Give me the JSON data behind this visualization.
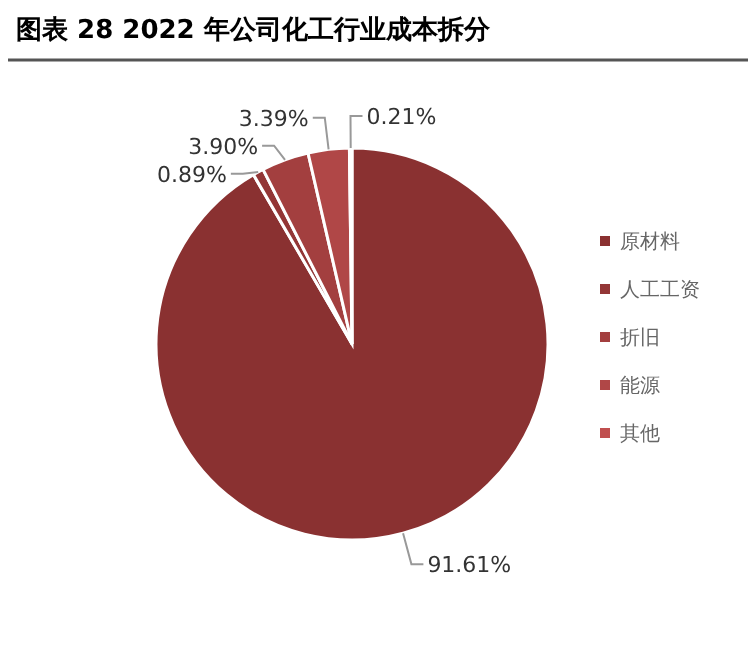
{
  "chart_data": {
    "type": "pie",
    "title": "图表 28 2022 年公司化工行业成本拆分",
    "categories": [
      "原材料",
      "人工工资",
      "折旧",
      "能源",
      "其他"
    ],
    "values": [
      91.61,
      0.89,
      3.9,
      3.39,
      0.21
    ],
    "colors": [
      "#8a3131",
      "#933636",
      "#a33f3f",
      "#b04747",
      "#c04f4f"
    ],
    "value_labels": [
      "91.61%",
      "0.89%",
      "3.90%",
      "3.39%",
      "0.21%"
    ],
    "legend": "right"
  }
}
